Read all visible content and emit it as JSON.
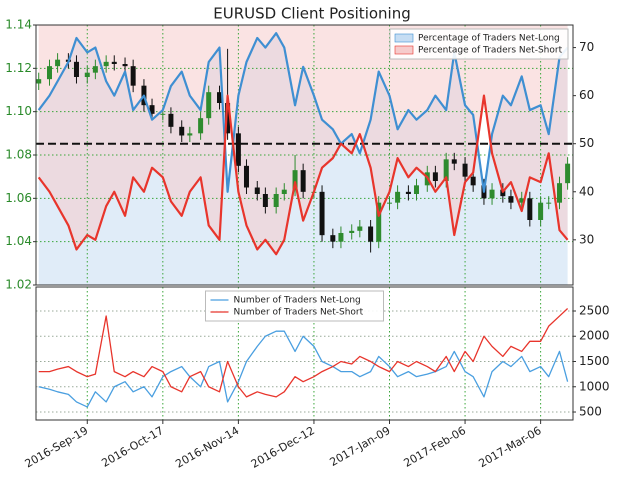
{
  "chart_data": [
    {
      "type": "candlestick",
      "title": "EURUSD Client Positioning",
      "x": [
        "2016-09-01",
        "2016-09-05",
        "2016-09-08",
        "2016-09-12",
        "2016-09-15",
        "2016-09-19",
        "2016-09-22",
        "2016-09-26",
        "2016-09-29",
        "2016-10-03",
        "2016-10-06",
        "2016-10-10",
        "2016-10-13",
        "2016-10-17",
        "2016-10-20",
        "2016-10-24",
        "2016-10-27",
        "2016-10-31",
        "2016-11-03",
        "2016-11-07",
        "2016-11-10",
        "2016-11-14",
        "2016-11-17",
        "2016-11-21",
        "2016-11-24",
        "2016-11-28",
        "2016-12-01",
        "2016-12-05",
        "2016-12-08",
        "2016-12-12",
        "2016-12-15",
        "2016-12-19",
        "2016-12-22",
        "2016-12-26",
        "2016-12-29",
        "2017-01-02",
        "2017-01-05",
        "2017-01-09",
        "2017-01-12",
        "2017-01-16",
        "2017-01-19",
        "2017-01-23",
        "2017-01-26",
        "2017-01-30",
        "2017-02-02",
        "2017-02-06",
        "2017-02-09",
        "2017-02-13",
        "2017-02-16",
        "2017-02-20",
        "2017-02-23",
        "2017-02-27",
        "2017-03-02",
        "2017-03-06",
        "2017-03-09",
        "2017-03-13",
        "2017-03-16"
      ],
      "open": [
        1.113,
        1.115,
        1.121,
        1.124,
        1.123,
        1.116,
        1.118,
        1.121,
        1.123,
        1.122,
        1.121,
        1.112,
        1.103,
        1.099,
        1.099,
        1.093,
        1.089,
        1.09,
        1.097,
        1.109,
        1.104,
        1.09,
        1.075,
        1.065,
        1.062,
        1.056,
        1.062,
        1.064,
        1.073,
        1.063,
        1.063,
        1.043,
        1.04,
        1.044,
        1.045,
        1.047,
        1.04,
        1.058,
        1.058,
        1.063,
        1.062,
        1.066,
        1.072,
        1.068,
        1.078,
        1.076,
        1.07,
        1.066,
        1.06,
        1.064,
        1.061,
        1.058,
        1.06,
        1.05,
        1.058,
        1.058,
        1.067
      ],
      "high": [
        1.118,
        1.124,
        1.127,
        1.127,
        1.126,
        1.121,
        1.124,
        1.126,
        1.126,
        1.125,
        1.124,
        1.115,
        1.106,
        1.102,
        1.102,
        1.096,
        1.093,
        1.1,
        1.112,
        1.112,
        1.129,
        1.093,
        1.078,
        1.068,
        1.065,
        1.065,
        1.067,
        1.08,
        1.076,
        1.066,
        1.066,
        1.046,
        1.047,
        1.048,
        1.05,
        1.05,
        1.061,
        1.061,
        1.066,
        1.066,
        1.069,
        1.075,
        1.075,
        1.081,
        1.081,
        1.079,
        1.073,
        1.069,
        1.067,
        1.067,
        1.064,
        1.063,
        1.063,
        1.061,
        1.061,
        1.07,
        1.079
      ],
      "low": [
        1.11,
        1.112,
        1.118,
        1.12,
        1.113,
        1.113,
        1.115,
        1.118,
        1.119,
        1.118,
        1.109,
        1.1,
        1.096,
        1.096,
        1.09,
        1.086,
        1.086,
        1.087,
        1.094,
        1.101,
        1.087,
        1.072,
        1.062,
        1.059,
        1.053,
        1.053,
        1.059,
        1.061,
        1.06,
        1.06,
        1.04,
        1.037,
        1.037,
        1.041,
        1.042,
        1.035,
        1.037,
        1.055,
        1.055,
        1.059,
        1.059,
        1.063,
        1.065,
        1.065,
        1.073,
        1.067,
        1.063,
        1.057,
        1.057,
        1.058,
        1.055,
        1.055,
        1.047,
        1.047,
        1.055,
        1.055,
        1.064
      ],
      "close": [
        1.115,
        1.121,
        1.124,
        1.123,
        1.116,
        1.118,
        1.121,
        1.123,
        1.122,
        1.121,
        1.112,
        1.103,
        1.099,
        1.099,
        1.093,
        1.089,
        1.09,
        1.097,
        1.109,
        1.104,
        1.09,
        1.075,
        1.065,
        1.062,
        1.056,
        1.062,
        1.064,
        1.073,
        1.063,
        1.063,
        1.043,
        1.04,
        1.044,
        1.045,
        1.047,
        1.04,
        1.058,
        1.058,
        1.063,
        1.062,
        1.066,
        1.072,
        1.068,
        1.078,
        1.076,
        1.07,
        1.066,
        1.06,
        1.064,
        1.061,
        1.058,
        1.06,
        1.05,
        1.058,
        1.058,
        1.067,
        1.076
      ],
      "color_up": "#2e8b2e",
      "color_down": "#111111",
      "ylim": [
        1.02,
        1.14
      ],
      "yticks": [
        1.02,
        1.04,
        1.06,
        1.08,
        {
          "value": 1.1,
          "label": "1.10"
        },
        1.12,
        1.14
      ],
      "y2lim": [
        20.6,
        74.7
      ],
      "y2ticks": [
        30,
        40,
        50,
        60,
        70
      ],
      "hline": {
        "axis": "y2",
        "value": 50
      },
      "grid": true,
      "legend": "upper right",
      "series": [
        {
          "name": "Percentage of Traders Net-Long",
          "color": "#3f8fd2",
          "fill": "#c6ddf3",
          "axis": "y2",
          "values": [
            57,
            60,
            63,
            67,
            72,
            69,
            70,
            63,
            60,
            65,
            57,
            60,
            55,
            57,
            62,
            65,
            60,
            57,
            67,
            70,
            40,
            60,
            67,
            72,
            70,
            73,
            70,
            58,
            66,
            60,
            55,
            53,
            50,
            52,
            48,
            55,
            65,
            60,
            53,
            57,
            55,
            57,
            60,
            57,
            69,
            58,
            56,
            40,
            52,
            60,
            58,
            64,
            57,
            58,
            52,
            68,
            70
          ]
        },
        {
          "name": "Percentage of Traders Net-Short",
          "color": "#e8352c",
          "fill": "#f6cccc",
          "axis": "y2",
          "values": [
            43,
            40,
            37,
            33,
            28,
            31,
            30,
            37,
            40,
            35,
            43,
            40,
            45,
            43,
            38,
            35,
            40,
            43,
            33,
            30,
            60,
            40,
            33,
            28,
            30,
            27,
            30,
            42,
            34,
            40,
            45,
            47,
            50,
            48,
            52,
            45,
            35,
            40,
            47,
            43,
            45,
            43,
            40,
            43,
            31,
            42,
            44,
            60,
            48,
            40,
            42,
            36,
            43,
            42,
            48,
            32,
            30
          ]
        }
      ]
    },
    {
      "type": "line",
      "xlim": [
        "2016-08-31",
        "2017-03-18"
      ],
      "xticks": [
        {
          "value": "2016-09-19",
          "label": "2016-Sep-19"
        },
        {
          "value": "2016-10-17",
          "label": "2016-Oct-17"
        },
        {
          "value": "2016-11-14",
          "label": "2016-Nov-14"
        },
        {
          "value": "2016-12-12",
          "label": "2016-Dec-12"
        },
        {
          "value": "2017-01-09",
          "label": "2017-Jan-09"
        },
        {
          "value": "2017-02-06",
          "label": "2017-Feb-06"
        },
        {
          "value": "2017-03-06",
          "label": "2017-Mar-06"
        }
      ],
      "ylim": [
        342,
        2975
      ],
      "yticks": [
        500,
        1000,
        1500,
        2000,
        2500
      ],
      "grid": true,
      "legend": "upper center",
      "series": [
        {
          "name": "Number of Traders Net-Long",
          "color": "#4a9fe0",
          "values": [
            1000,
            950,
            900,
            850,
            700,
            600,
            900,
            700,
            1000,
            1100,
            900,
            1000,
            800,
            1200,
            1300,
            1400,
            1200,
            1000,
            1400,
            1500,
            700,
            1100,
            1500,
            1800,
            2000,
            2100,
            2100,
            1700,
            2000,
            1800,
            1500,
            1400,
            1300,
            1300,
            1200,
            1300,
            1600,
            1400,
            1200,
            1300,
            1200,
            1250,
            1300,
            1400,
            1700,
            1300,
            1200,
            800,
            1300,
            1500,
            1400,
            1600,
            1300,
            1400,
            1200,
            1700,
            1100
          ]
        },
        {
          "name": "Number of Traders Net-Short",
          "color": "#e8352c",
          "values": [
            1300,
            1300,
            1350,
            1400,
            1300,
            1200,
            1250,
            2400,
            1300,
            1200,
            1300,
            1200,
            1400,
            1300,
            1000,
            900,
            1200,
            1300,
            1000,
            900,
            1500,
            1000,
            800,
            900,
            850,
            800,
            900,
            1200,
            1100,
            1200,
            1300,
            1400,
            1500,
            1450,
            1600,
            1500,
            1400,
            1300,
            1500,
            1400,
            1500,
            1400,
            1300,
            1600,
            1300,
            1700,
            1500,
            2000,
            1800,
            1600,
            1800,
            1700,
            1900,
            1900,
            2200,
            2400,
            2550
          ]
        }
      ]
    }
  ]
}
